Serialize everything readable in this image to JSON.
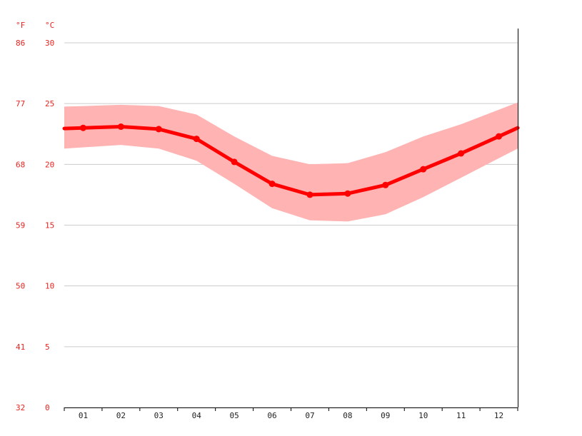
{
  "chart_data": {
    "type": "line",
    "categories": [
      "01",
      "02",
      "03",
      "04",
      "05",
      "06",
      "07",
      "08",
      "09",
      "10",
      "11",
      "12"
    ],
    "series": [
      {
        "values": [
          23.0,
          23.1,
          22.9,
          22.1,
          20.2,
          18.4,
          17.5,
          17.6,
          18.3,
          19.6,
          20.9,
          22.3
        ]
      }
    ],
    "band": {
      "upper": [
        24.8,
        24.9,
        24.8,
        24.1,
        22.3,
        20.7,
        20.0,
        20.1,
        21.0,
        22.3,
        23.3,
        24.5
      ],
      "lower": [
        21.4,
        21.6,
        21.3,
        20.3,
        18.4,
        16.4,
        15.4,
        15.3,
        15.9,
        17.3,
        18.9,
        20.5
      ]
    },
    "y_celsius_ticks": [
      "0",
      "5",
      "10",
      "15",
      "20",
      "25",
      "30"
    ],
    "y_fahrenheit_ticks": [
      "32",
      "41",
      "50",
      "59",
      "68",
      "77",
      "86"
    ],
    "unit_celsius": "°C",
    "unit_fahrenheit": "°F",
    "ylim": [
      0,
      30
    ],
    "grid": true,
    "colors": {
      "line": "#ff0000",
      "band": "#ffb3b3",
      "grid": "#cccccc",
      "axis_text": "#e8231f",
      "x_text": "#222222"
    }
  }
}
